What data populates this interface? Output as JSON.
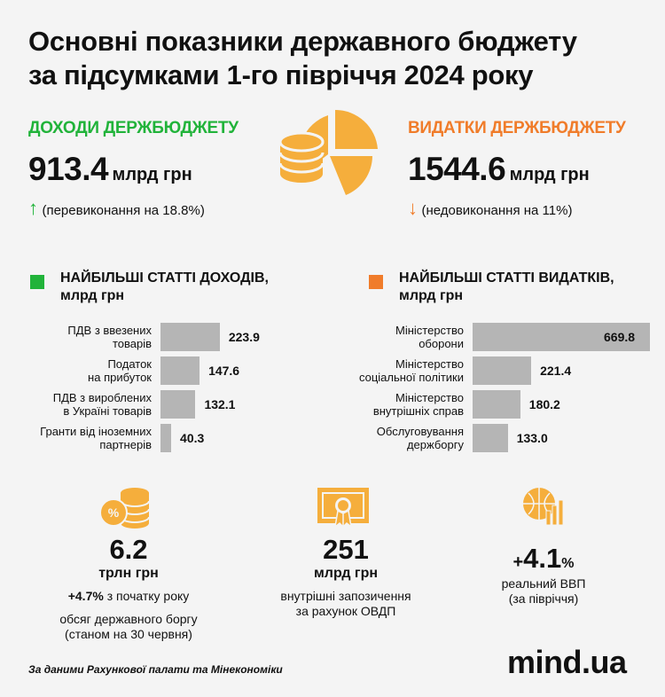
{
  "title_line1": "Основні показники державного бюджету",
  "title_line2": "за підсумками 1-го півріччя 2024 року",
  "revenue": {
    "header": "ДОХОДИ ДЕРЖБЮДЖЕТУ",
    "value": "913.4",
    "unit": "млрд грн",
    "arrow": "↑",
    "note": "(перевиконання на 18.8%)"
  },
  "expense": {
    "header": "ВИДАТКИ ДЕРЖБЮДЖЕТУ",
    "value": "1544.6",
    "unit": "млрд грн",
    "arrow": "↓",
    "note": "(недовиконання на 11%)"
  },
  "colors": {
    "green": "#21b33a",
    "orange": "#f07c2a",
    "gold": "#f5ae3c",
    "bar": "#b5b5b5"
  },
  "chart_data": [
    {
      "type": "bar",
      "orientation": "horizontal",
      "title": "НАЙБІЛЬШІ СТАТТІ ДОХОДІВ, млрд грн",
      "title_line1": "НАЙБІЛЬШІ СТАТТІ ДОХОДІВ,",
      "title_line2": "млрд грн",
      "categories": [
        [
          "ПДВ з ввезених",
          "товарів"
        ],
        [
          "Податок",
          "на прибуток"
        ],
        [
          "ПДВ з вироблених",
          "в Україні товарів"
        ],
        [
          "Гранти від іноземних",
          "партнерів"
        ]
      ],
      "values": [
        223.9,
        147.6,
        132.1,
        40.3
      ],
      "value_labels": [
        "223.9",
        "147.6",
        "132.1",
        "40.3"
      ]
    },
    {
      "type": "bar",
      "orientation": "horizontal",
      "title": "НАЙБІЛЬШІ СТАТТІ ВИДАТКІВ, млрд грн",
      "title_line1": "НАЙБІЛЬШІ СТАТТІ ВИДАТКІВ,",
      "title_line2": "млрд грн",
      "categories": [
        [
          "Міністерство",
          "оборони"
        ],
        [
          "Міністерство",
          "соціальної політики"
        ],
        [
          "Міністерство",
          "внутрішніх справ"
        ],
        [
          "Обслуговування",
          "держборгу"
        ]
      ],
      "values": [
        669.8,
        221.4,
        180.2,
        133.0
      ],
      "value_labels": [
        "669.8",
        "221.4",
        "180.2",
        "133.0"
      ]
    }
  ],
  "stats": [
    {
      "icon": "coins-percent-icon",
      "value": "6.2",
      "unit": "трлн грн",
      "extra_bold": "+4.7%",
      "extra": " з початку року",
      "text1": "обсяг державного боргу",
      "text2": "(станом на 30 червня)"
    },
    {
      "icon": "certificate-icon",
      "value": "251",
      "unit": "млрд грн",
      "text1": "внутрішні запозичення",
      "text2": "за рахунок ОВДП"
    },
    {
      "icon": "globe-growth-icon",
      "value_prefix": "+",
      "value": "4.1",
      "value_suffix": "%",
      "text1": "реальний ВВП",
      "text2": "(за півріччя)"
    }
  ],
  "source": "За даними Рахункової палати та Мінекономіки",
  "logo": "mind.ua"
}
